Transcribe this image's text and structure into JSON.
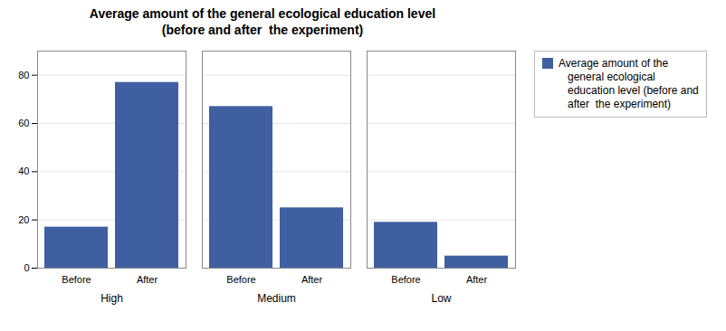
{
  "chart_data": {
    "type": "bar",
    "title": "Average amount of the general ecological education level\n(before and after  the experiment)",
    "categories": [
      "Before",
      "After",
      "Before",
      "After",
      "Before",
      "After"
    ],
    "groups": [
      "High",
      "High",
      "Medium",
      "Medium",
      "Low",
      "Low"
    ],
    "series": [
      {
        "name": "Average amount of the\n   general ecological\n   education level (before and\n   after  the experiment)",
        "color": "#3f5fa0",
        "values": [
          17,
          77,
          67,
          25,
          19,
          5
        ]
      }
    ],
    "ylim": [
      0,
      90
    ],
    "yticks": [
      0,
      20,
      40,
      60,
      80
    ],
    "grid": true,
    "legend": "right"
  }
}
